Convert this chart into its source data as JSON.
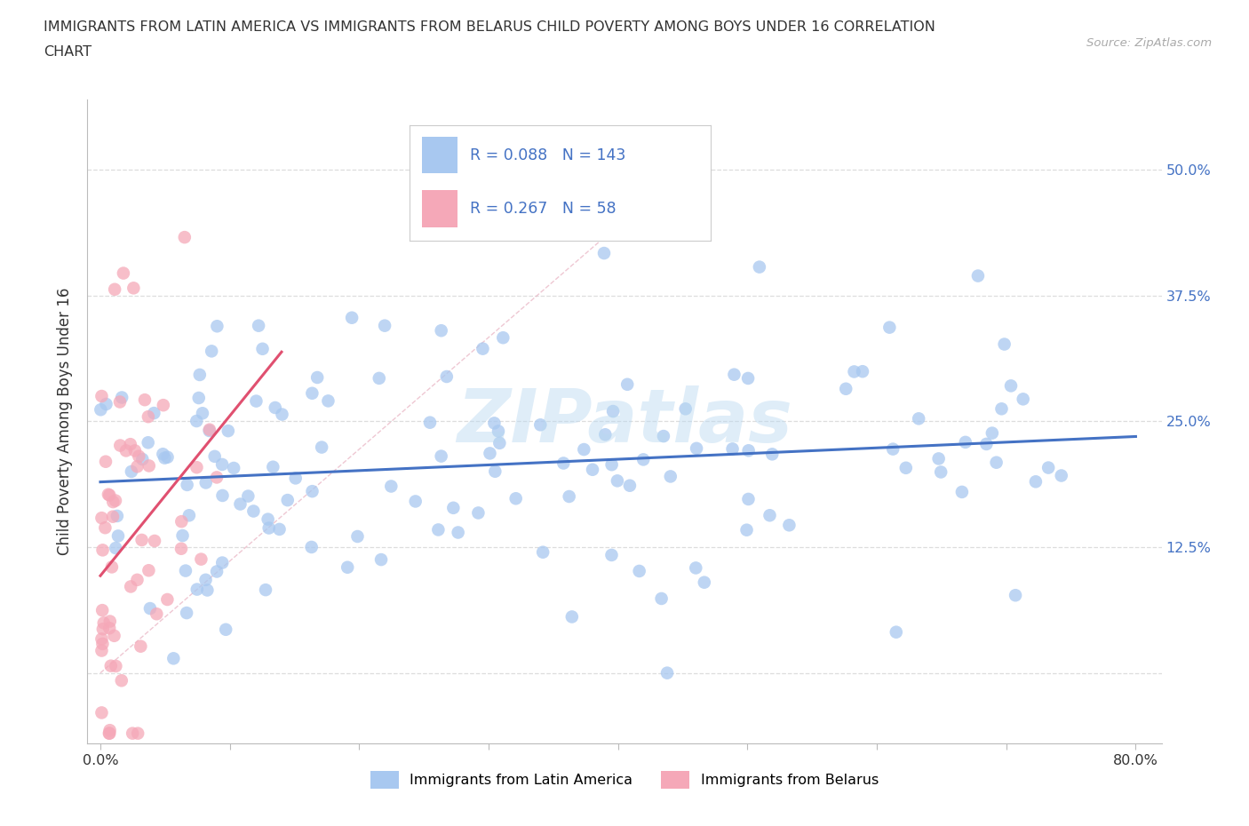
{
  "title_line1": "IMMIGRANTS FROM LATIN AMERICA VS IMMIGRANTS FROM BELARUS CHILD POVERTY AMONG BOYS UNDER 16 CORRELATION",
  "title_line2": "CHART",
  "source": "Source: ZipAtlas.com",
  "ylabel": "Child Poverty Among Boys Under 16",
  "watermark": "ZIPatlas",
  "series1_label": "Immigrants from Latin America",
  "series2_label": "Immigrants from Belarus",
  "series1_color": "#a8c8f0",
  "series2_color": "#f5a8b8",
  "series1_R": 0.088,
  "series1_N": 143,
  "series2_R": 0.267,
  "series2_N": 58,
  "trend1_color": "#4472c4",
  "trend2_color": "#e05070",
  "xmin": 0.0,
  "xmax": 0.8,
  "ymin": -0.07,
  "ymax": 0.57,
  "yticks": [
    0.0,
    0.125,
    0.25,
    0.375,
    0.5
  ],
  "background_color": "#ffffff",
  "grid_color": "#dddddd",
  "legend_color": "#4472c4"
}
